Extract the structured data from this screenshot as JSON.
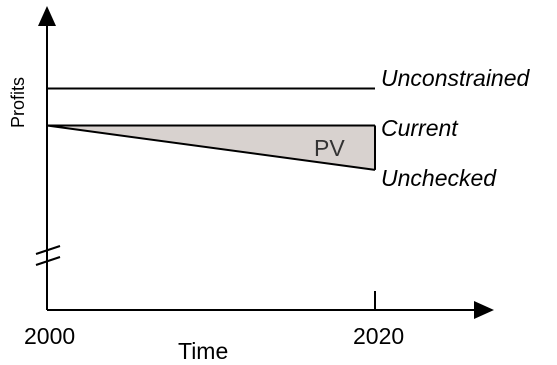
{
  "chart_data": {
    "type": "line",
    "ylabel": "Profits",
    "xlabel": "Time",
    "x_ticks": [
      "2000",
      "2020"
    ],
    "xlim": [
      2000,
      2020
    ],
    "grid": false,
    "y_axis_break": true,
    "series": [
      {
        "name": "Unconstrained",
        "x": [
          2000,
          2020
        ],
        "relative_level": [
          1.4,
          1.4
        ]
      },
      {
        "name": "Current",
        "x": [
          2000,
          2020
        ],
        "relative_level": [
          1.0,
          1.0
        ]
      },
      {
        "name": "Unchecked",
        "x": [
          2000,
          2020
        ],
        "relative_level": [
          1.0,
          0.52
        ]
      }
    ],
    "shaded_region": {
      "label": "PV",
      "between": [
        "Current",
        "Unchecked"
      ],
      "color": "#d8d2cf"
    },
    "colors": {
      "axis": "#000000",
      "line": "#000000",
      "fill": "#d8d2cf"
    }
  }
}
